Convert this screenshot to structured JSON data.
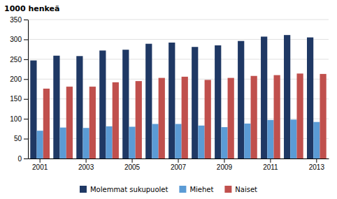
{
  "chart_data": {
    "type": "bar",
    "y_label": "1000 henkeä",
    "categories": [
      "2001",
      null,
      "2003",
      null,
      "2005",
      null,
      "2007",
      null,
      "2009",
      null,
      "2011",
      null,
      "2013"
    ],
    "series": [
      {
        "name": "Molemmat sukupuolet",
        "color": "#1F3864",
        "values": [
          247,
          259,
          258,
          272,
          274,
          289,
          292,
          281,
          285,
          296,
          307,
          311,
          305
        ]
      },
      {
        "name": "Miehet",
        "color": "#5B9BD5",
        "values": [
          70,
          78,
          77,
          81,
          80,
          87,
          87,
          83,
          79,
          88,
          97,
          98,
          92
        ]
      },
      {
        "name": "Naiset",
        "color": "#C0504D",
        "values": [
          176,
          181,
          181,
          192,
          195,
          203,
          206,
          198,
          203,
          208,
          210,
          214,
          213
        ]
      }
    ],
    "ylim": [
      0,
      350
    ],
    "yticks": [
      0,
      50,
      100,
      150,
      200,
      250,
      300,
      350
    ],
    "grid": true,
    "legend": "bottom"
  }
}
